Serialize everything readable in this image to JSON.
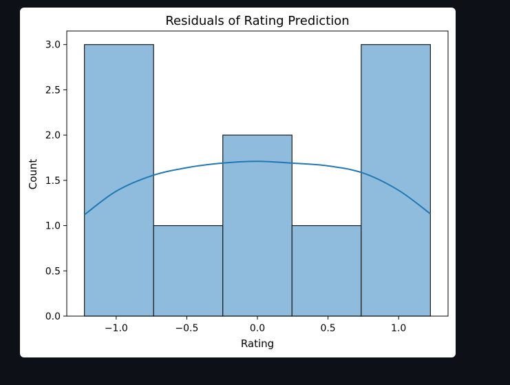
{
  "chart_data": {
    "type": "bar",
    "title": "Residuals of Rating Prediction",
    "xlabel": "Rating",
    "ylabel": "Count",
    "bins": [
      {
        "x0": -1.225,
        "x1": -0.735,
        "count": 3
      },
      {
        "x0": -0.735,
        "x1": -0.245,
        "count": 1
      },
      {
        "x0": -0.245,
        "x1": 0.245,
        "count": 2
      },
      {
        "x0": 0.245,
        "x1": 0.735,
        "count": 1
      },
      {
        "x0": 0.735,
        "x1": 1.225,
        "count": 3
      }
    ],
    "kde": {
      "x": [
        -1.225,
        -1.0,
        -0.75,
        -0.5,
        -0.25,
        0.0,
        0.25,
        0.5,
        0.75,
        1.0,
        1.225
      ],
      "y": [
        1.12,
        1.38,
        1.55,
        1.64,
        1.69,
        1.71,
        1.69,
        1.66,
        1.58,
        1.39,
        1.13
      ]
    },
    "xlim": [
      -1.35,
      1.35
    ],
    "ylim": [
      0,
      3.15
    ],
    "xticks": [
      -1.0,
      -0.5,
      0.0,
      0.5,
      1.0
    ],
    "xtick_labels": [
      "−1.0",
      "−0.5",
      "0.0",
      "0.5",
      "1.0"
    ],
    "yticks": [
      0.0,
      0.5,
      1.0,
      1.5,
      2.0,
      2.5,
      3.0
    ],
    "ytick_labels": [
      "0.0",
      "0.5",
      "1.0",
      "1.5",
      "2.0",
      "2.5",
      "3.0"
    ],
    "grid": false,
    "colors": {
      "bar_fill": "#8fbcdc",
      "bar_edge": "#1a1a1a",
      "kde_line": "#1f77b4",
      "background": "#ffffff",
      "page": "#0d1117"
    }
  }
}
